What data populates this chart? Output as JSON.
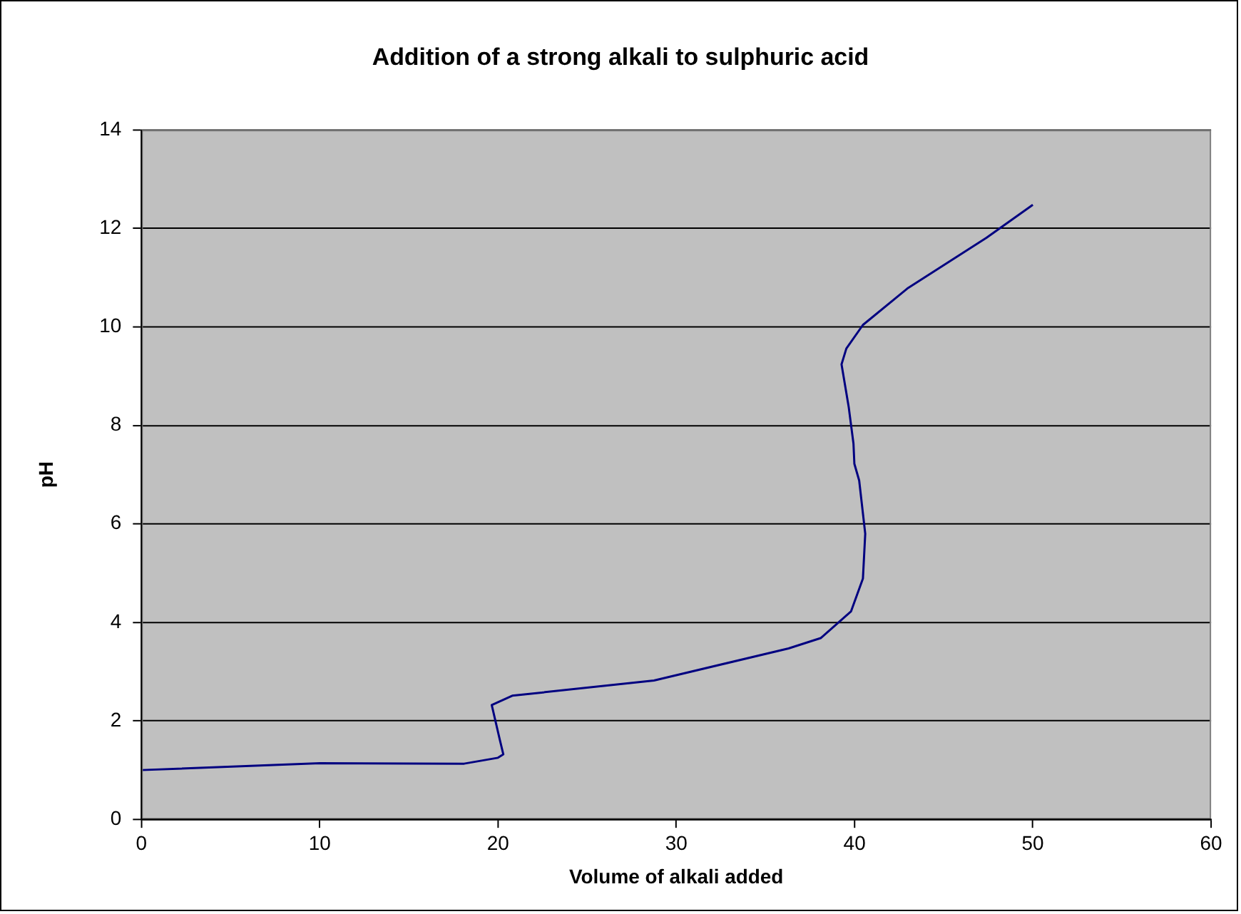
{
  "chart_data": {
    "type": "line",
    "title": "Addition of a strong alkali to sulphuric acid",
    "xlabel": "Volume of alkali added",
    "ylabel": "pH",
    "xlim": [
      0,
      60
    ],
    "xticks": [
      0,
      10,
      20,
      30,
      40,
      50,
      60
    ],
    "ylim": [
      0,
      14
    ],
    "yticks": [
      0,
      2,
      4,
      6,
      8,
      10,
      12,
      14
    ],
    "grid": "y",
    "legend": false,
    "marker": "none",
    "series": [
      {
        "color": "#000080",
        "x": [
          0,
          10,
          18.1,
          20,
          20.3,
          20.1,
          19.65,
          20.8,
          28.75,
          36.3,
          38.1,
          39.8,
          40.47,
          40.6,
          40.26,
          39.99,
          39.94,
          39.67,
          39.27,
          39.54,
          40.47,
          43,
          47.4,
          50
        ],
        "values": [
          1,
          1.14,
          1.13,
          1.25,
          1.32,
          1.62,
          2.32,
          2.51,
          2.82,
          3.47,
          3.68,
          4.22,
          4.89,
          5.8,
          6.88,
          7.22,
          7.63,
          8.38,
          9.24,
          9.56,
          10.04,
          10.79,
          11.81,
          12.48
        ]
      }
    ]
  }
}
